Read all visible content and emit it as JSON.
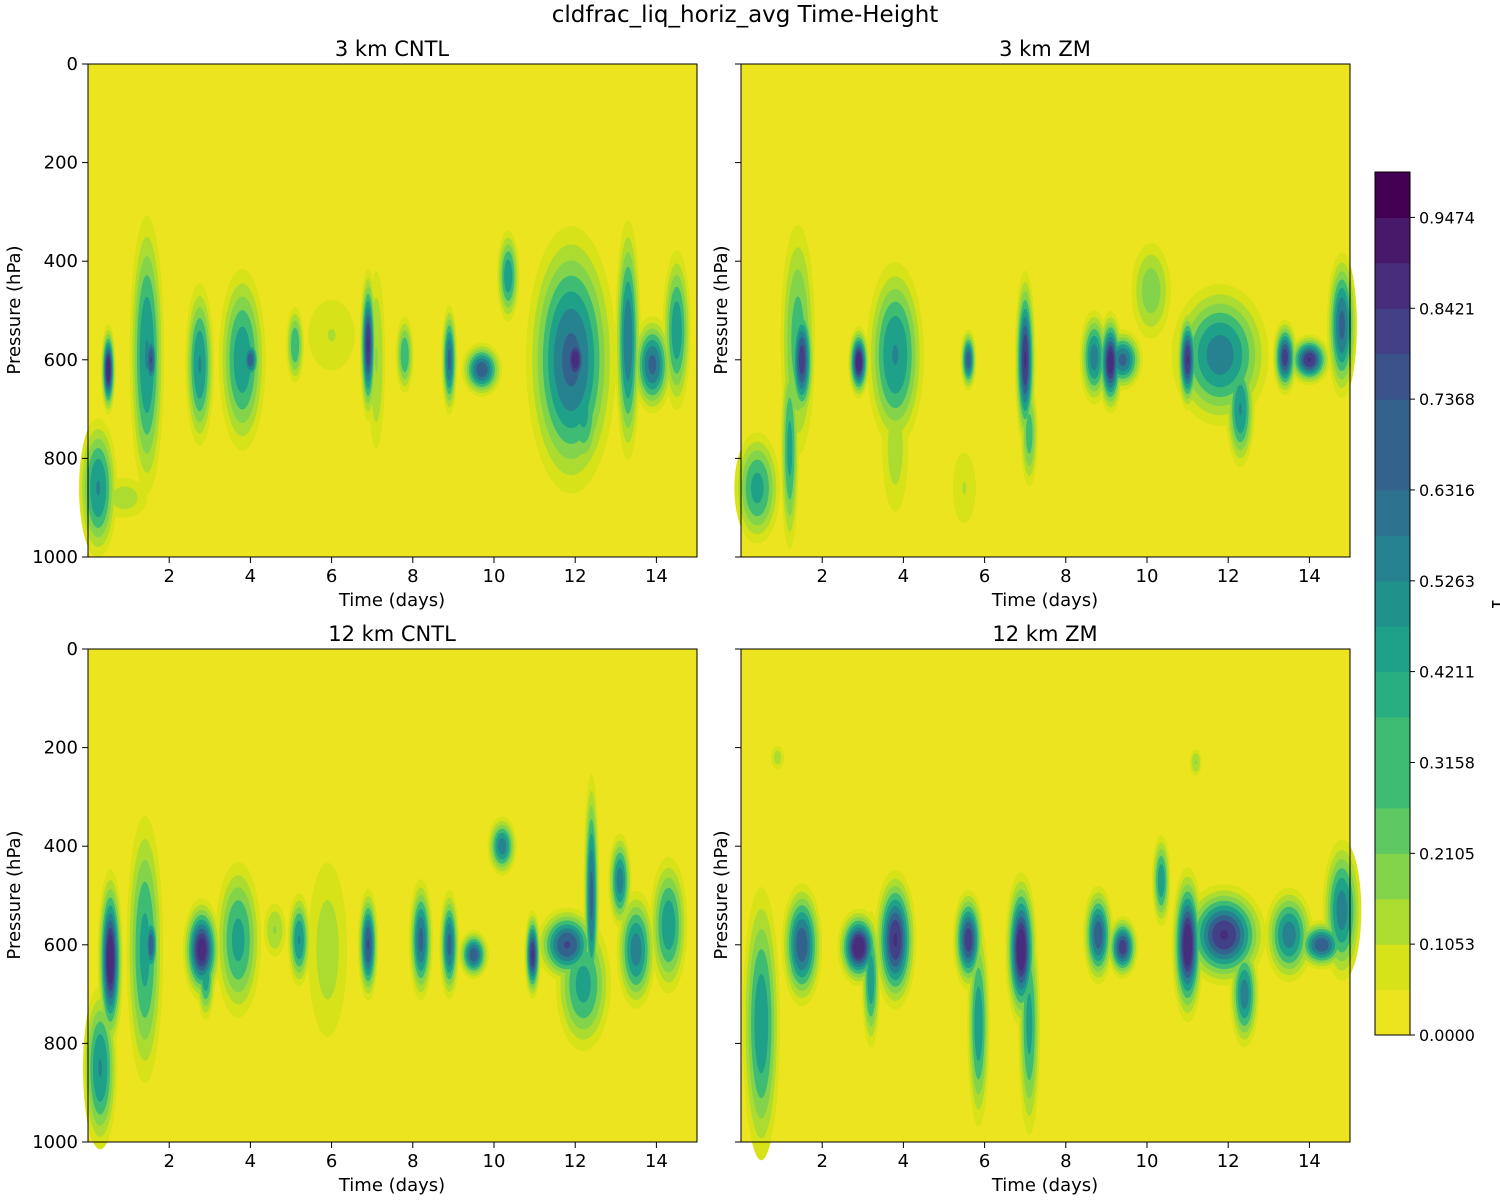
{
  "figure": {
    "suptitle": "cldfrac_liq_horiz_avg Time-Height"
  },
  "colorbar": {
    "label": "1",
    "ticks": [
      "0.0000",
      "0.1053",
      "0.2105",
      "0.3158",
      "0.4211",
      "0.5263",
      "0.6316",
      "0.7368",
      "0.8421",
      "0.9474"
    ],
    "levels": 19,
    "range": [
      0.0,
      1.0
    ]
  },
  "palette": {
    "background": "#ffffff",
    "field_zero": "#ece41f",
    "viridis": [
      "#fde725",
      "#d8e219",
      "#addc30",
      "#84d44b",
      "#5ec962",
      "#3fbc73",
      "#28ae80",
      "#1fa088",
      "#21918c",
      "#26828e",
      "#2c728e",
      "#33638d",
      "#3b528b",
      "#424086",
      "#472d7b",
      "#48186a",
      "#440154"
    ]
  },
  "chart_data": [
    {
      "type": "heatmap",
      "title": "3 km CNTL",
      "xlabel": "Time (days)",
      "ylabel": "Pressure (hPa)",
      "xlim": [
        0,
        15
      ],
      "ylim": [
        1000,
        0
      ],
      "xticks": [
        "2",
        "4",
        "6",
        "8",
        "10",
        "12",
        "14"
      ],
      "yticks": [
        "0",
        "200",
        "400",
        "600",
        "800",
        "1000"
      ],
      "features": [
        {
          "t": 0.5,
          "p": 620,
          "dt": 0.07,
          "dp": 35,
          "v": 1.0
        },
        {
          "t": 0.25,
          "p": 860,
          "dt": 0.2,
          "dp": 60,
          "v": 0.55
        },
        {
          "t": 0.9,
          "p": 880,
          "dt": 0.35,
          "dp": 25,
          "v": 0.15
        },
        {
          "t": 1.45,
          "p": 590,
          "dt": 0.18,
          "dp": 120,
          "v": 0.55
        },
        {
          "t": 1.55,
          "p": 600,
          "dt": 0.08,
          "dp": 30,
          "v": 0.8
        },
        {
          "t": 2.75,
          "p": 610,
          "dt": 0.15,
          "dp": 70,
          "v": 0.55
        },
        {
          "t": 3.8,
          "p": 600,
          "dt": 0.25,
          "dp": 80,
          "v": 0.5
        },
        {
          "t": 4.0,
          "p": 600,
          "dt": 0.1,
          "dp": 20,
          "v": 0.75
        },
        {
          "t": 5.1,
          "p": 570,
          "dt": 0.1,
          "dp": 35,
          "v": 0.4
        },
        {
          "t": 6.0,
          "p": 550,
          "dt": 0.4,
          "dp": 50,
          "v": 0.12
        },
        {
          "t": 6.9,
          "p": 570,
          "dt": 0.08,
          "dp": 60,
          "v": 0.9
        },
        {
          "t": 7.1,
          "p": 600,
          "dt": 0.12,
          "dp": 100,
          "v": 0.2
        },
        {
          "t": 7.8,
          "p": 590,
          "dt": 0.1,
          "dp": 35,
          "v": 0.4
        },
        {
          "t": 8.9,
          "p": 600,
          "dt": 0.08,
          "dp": 45,
          "v": 0.7
        },
        {
          "t": 9.7,
          "p": 620,
          "dt": 0.2,
          "dp": 22,
          "v": 0.75
        },
        {
          "t": 10.35,
          "p": 430,
          "dt": 0.12,
          "dp": 40,
          "v": 0.5
        },
        {
          "t": 11.9,
          "p": 600,
          "dt": 0.45,
          "dp": 110,
          "v": 0.7
        },
        {
          "t": 12.0,
          "p": 600,
          "dt": 0.15,
          "dp": 30,
          "v": 0.95
        },
        {
          "t": 12.2,
          "p": 700,
          "dt": 0.2,
          "dp": 60,
          "v": 0.45
        },
        {
          "t": 13.3,
          "p": 560,
          "dt": 0.13,
          "dp": 100,
          "v": 0.65
        },
        {
          "t": 13.9,
          "p": 610,
          "dt": 0.2,
          "dp": 40,
          "v": 0.7
        },
        {
          "t": 14.5,
          "p": 540,
          "dt": 0.15,
          "dp": 70,
          "v": 0.5
        }
      ]
    },
    {
      "type": "heatmap",
      "title": "3 km ZM",
      "xlabel": "Time (days)",
      "ylabel": "Pressure (hPa)",
      "xlim": [
        0,
        15
      ],
      "ylim": [
        1000,
        0
      ],
      "xticks": [
        "2",
        "4",
        "6",
        "8",
        "10",
        "12",
        "14"
      ],
      "yticks": [],
      "features": [
        {
          "t": 0.4,
          "p": 860,
          "dt": 0.25,
          "dp": 50,
          "v": 0.45
        },
        {
          "t": 1.2,
          "p": 780,
          "dt": 0.1,
          "dp": 90,
          "v": 0.45
        },
        {
          "t": 1.5,
          "p": 600,
          "dt": 0.12,
          "dp": 50,
          "v": 0.85
        },
        {
          "t": 1.4,
          "p": 560,
          "dt": 0.2,
          "dp": 110,
          "v": 0.35
        },
        {
          "t": 2.9,
          "p": 605,
          "dt": 0.1,
          "dp": 28,
          "v": 1.0
        },
        {
          "t": 3.8,
          "p": 590,
          "dt": 0.3,
          "dp": 80,
          "v": 0.55
        },
        {
          "t": 3.8,
          "p": 780,
          "dt": 0.2,
          "dp": 80,
          "v": 0.15
        },
        {
          "t": 5.5,
          "p": 860,
          "dt": 0.2,
          "dp": 50,
          "v": 0.12
        },
        {
          "t": 5.6,
          "p": 600,
          "dt": 0.08,
          "dp": 25,
          "v": 0.75
        },
        {
          "t": 7.0,
          "p": 600,
          "dt": 0.1,
          "dp": 70,
          "v": 0.9
        },
        {
          "t": 7.1,
          "p": 750,
          "dt": 0.1,
          "dp": 50,
          "v": 0.35
        },
        {
          "t": 8.7,
          "p": 595,
          "dt": 0.15,
          "dp": 40,
          "v": 0.6
        },
        {
          "t": 9.1,
          "p": 605,
          "dt": 0.12,
          "dp": 40,
          "v": 0.95
        },
        {
          "t": 9.4,
          "p": 600,
          "dt": 0.2,
          "dp": 25,
          "v": 0.7
        },
        {
          "t": 10.1,
          "p": 460,
          "dt": 0.25,
          "dp": 50,
          "v": 0.25
        },
        {
          "t": 11.0,
          "p": 600,
          "dt": 0.1,
          "dp": 40,
          "v": 0.9
        },
        {
          "t": 11.8,
          "p": 590,
          "dt": 0.5,
          "dp": 60,
          "v": 0.6
        },
        {
          "t": 12.3,
          "p": 700,
          "dt": 0.15,
          "dp": 50,
          "v": 0.55
        },
        {
          "t": 13.4,
          "p": 595,
          "dt": 0.12,
          "dp": 30,
          "v": 0.85
        },
        {
          "t": 14.0,
          "p": 600,
          "dt": 0.2,
          "dp": 20,
          "v": 0.9
        },
        {
          "t": 14.8,
          "p": 530,
          "dt": 0.15,
          "dp": 60,
          "v": 0.7
        }
      ]
    },
    {
      "type": "heatmap",
      "title": "12 km CNTL",
      "xlabel": "Time (days)",
      "ylabel": "Pressure (hPa)",
      "xlim": [
        0,
        15
      ],
      "ylim": [
        1000,
        0
      ],
      "xticks": [
        "2",
        "4",
        "6",
        "8",
        "10",
        "12",
        "14"
      ],
      "yticks": [
        "0",
        "200",
        "400",
        "600",
        "800",
        "1000"
      ],
      "features": [
        {
          "t": 0.55,
          "p": 630,
          "dt": 0.12,
          "dp": 70,
          "v": 1.0
        },
        {
          "t": 0.3,
          "p": 850,
          "dt": 0.18,
          "dp": 70,
          "v": 0.55
        },
        {
          "t": 1.4,
          "p": 610,
          "dt": 0.2,
          "dp": 120,
          "v": 0.45
        },
        {
          "t": 1.55,
          "p": 600,
          "dt": 0.08,
          "dp": 30,
          "v": 0.75
        },
        {
          "t": 2.8,
          "p": 610,
          "dt": 0.18,
          "dp": 40,
          "v": 0.95
        },
        {
          "t": 2.9,
          "p": 660,
          "dt": 0.1,
          "dp": 40,
          "v": 0.5
        },
        {
          "t": 3.7,
          "p": 590,
          "dt": 0.25,
          "dp": 70,
          "v": 0.45
        },
        {
          "t": 4.6,
          "p": 570,
          "dt": 0.15,
          "dp": 30,
          "v": 0.2
        },
        {
          "t": 5.2,
          "p": 590,
          "dt": 0.12,
          "dp": 40,
          "v": 0.55
        },
        {
          "t": 5.9,
          "p": 610,
          "dt": 0.3,
          "dp": 110,
          "v": 0.15
        },
        {
          "t": 6.9,
          "p": 600,
          "dt": 0.1,
          "dp": 45,
          "v": 0.8
        },
        {
          "t": 8.2,
          "p": 590,
          "dt": 0.12,
          "dp": 50,
          "v": 0.7
        },
        {
          "t": 8.9,
          "p": 600,
          "dt": 0.1,
          "dp": 45,
          "v": 0.7
        },
        {
          "t": 9.5,
          "p": 620,
          "dt": 0.15,
          "dp": 20,
          "v": 0.75
        },
        {
          "t": 10.2,
          "p": 400,
          "dt": 0.15,
          "dp": 25,
          "v": 0.6
        },
        {
          "t": 10.95,
          "p": 620,
          "dt": 0.08,
          "dp": 35,
          "v": 0.9
        },
        {
          "t": 11.8,
          "p": 600,
          "dt": 0.3,
          "dp": 30,
          "v": 0.8
        },
        {
          "t": 12.2,
          "p": 680,
          "dt": 0.3,
          "dp": 60,
          "v": 0.45
        },
        {
          "t": 12.4,
          "p": 500,
          "dt": 0.08,
          "dp": 100,
          "v": 0.7
        },
        {
          "t": 13.1,
          "p": 470,
          "dt": 0.12,
          "dp": 40,
          "v": 0.6
        },
        {
          "t": 13.5,
          "p": 610,
          "dt": 0.2,
          "dp": 50,
          "v": 0.6
        },
        {
          "t": 14.3,
          "p": 560,
          "dt": 0.2,
          "dp": 60,
          "v": 0.5
        }
      ]
    },
    {
      "type": "heatmap",
      "title": "12 km ZM",
      "xlabel": "Time (days)",
      "ylabel": "Pressure (hPa)",
      "xlim": [
        0,
        15
      ],
      "ylim": [
        1000,
        0
      ],
      "xticks": [
        "2",
        "4",
        "6",
        "8",
        "10",
        "12",
        "14"
      ],
      "yticks": [],
      "features": [
        {
          "t": 0.5,
          "p": 760,
          "dt": 0.2,
          "dp": 120,
          "v": 0.5
        },
        {
          "t": 0.9,
          "p": 220,
          "dt": 0.1,
          "dp": 15,
          "v": 0.15
        },
        {
          "t": 1.5,
          "p": 600,
          "dt": 0.2,
          "dp": 50,
          "v": 0.75
        },
        {
          "t": 2.9,
          "p": 605,
          "dt": 0.2,
          "dp": 30,
          "v": 1.0
        },
        {
          "t": 3.2,
          "p": 670,
          "dt": 0.1,
          "dp": 60,
          "v": 0.5
        },
        {
          "t": 3.8,
          "p": 590,
          "dt": 0.2,
          "dp": 55,
          "v": 0.9
        },
        {
          "t": 5.6,
          "p": 590,
          "dt": 0.15,
          "dp": 40,
          "v": 0.85
        },
        {
          "t": 5.85,
          "p": 760,
          "dt": 0.12,
          "dp": 90,
          "v": 0.5
        },
        {
          "t": 6.9,
          "p": 610,
          "dt": 0.15,
          "dp": 60,
          "v": 1.0
        },
        {
          "t": 7.1,
          "p": 760,
          "dt": 0.12,
          "dp": 100,
          "v": 0.45
        },
        {
          "t": 8.8,
          "p": 580,
          "dt": 0.15,
          "dp": 40,
          "v": 0.75
        },
        {
          "t": 9.4,
          "p": 605,
          "dt": 0.15,
          "dp": 25,
          "v": 0.85
        },
        {
          "t": 10.35,
          "p": 470,
          "dt": 0.1,
          "dp": 40,
          "v": 0.5
        },
        {
          "t": 11.0,
          "p": 600,
          "dt": 0.15,
          "dp": 60,
          "v": 1.0
        },
        {
          "t": 11.9,
          "p": 580,
          "dt": 0.4,
          "dp": 40,
          "v": 0.9
        },
        {
          "t": 12.4,
          "p": 700,
          "dt": 0.15,
          "dp": 45,
          "v": 0.6
        },
        {
          "t": 11.2,
          "p": 230,
          "dt": 0.08,
          "dp": 15,
          "v": 0.2
        },
        {
          "t": 13.5,
          "p": 580,
          "dt": 0.25,
          "dp": 40,
          "v": 0.6
        },
        {
          "t": 14.3,
          "p": 600,
          "dt": 0.25,
          "dp": 20,
          "v": 0.75
        },
        {
          "t": 14.8,
          "p": 530,
          "dt": 0.2,
          "dp": 60,
          "v": 0.6
        }
      ]
    }
  ]
}
